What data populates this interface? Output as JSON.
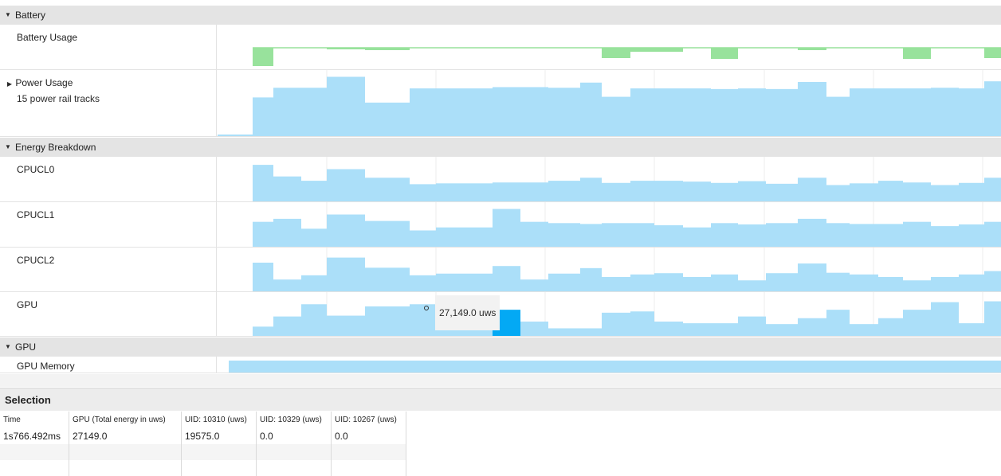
{
  "groups": {
    "battery": "Battery",
    "energy_breakdown": "Energy Breakdown",
    "gpu": "GPU"
  },
  "tracks": {
    "battery_usage": "Battery Usage",
    "power_usage": "Power Usage",
    "power_usage_sub": "15 power rail tracks",
    "cpucl0": "CPUCL0",
    "cpucl1": "CPUCL1",
    "cpucl2": "CPUCL2",
    "gpu": "GPU",
    "gpu_memory": "GPU Memory"
  },
  "tooltip": "27,149.0 uws",
  "selection": {
    "title": "Selection",
    "columns": [
      "Time",
      "GPU (Total energy in uws)",
      "UID: 10310 (uws)",
      "UID: 10329 (uws)",
      "UID: 10267 (uws)"
    ],
    "rows": [
      [
        "1s766.492ms",
        "27149.0",
        "19575.0",
        "0.0",
        "0.0"
      ]
    ]
  },
  "colors": {
    "track_fill": "#abdff9",
    "highlight_fill": "#03a9f4",
    "battery_fill": "#98e29c",
    "group_header": "#e4e4e4"
  },
  "icons": {
    "expanded": "caret-down-icon",
    "collapsed": "caret-right-icon"
  }
}
